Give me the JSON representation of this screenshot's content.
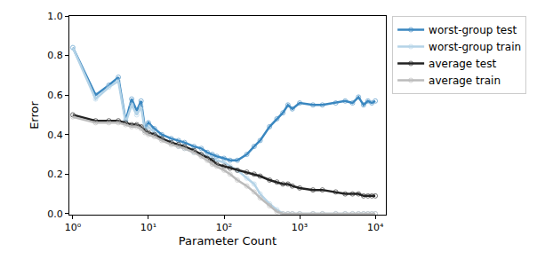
{
  "chart_data": {
    "type": "line",
    "x_label": "Parameter Count",
    "y_label": "Error",
    "log": "x",
    "grid": false,
    "legend": "outside right",
    "x": [
      1,
      2,
      3,
      4,
      5,
      6,
      7,
      8,
      9,
      10,
      12,
      15,
      20,
      25,
      30,
      40,
      50,
      60,
      70,
      80,
      100,
      120,
      150,
      200,
      250,
      300,
      400,
      500,
      600,
      700,
      800,
      1000,
      1500,
      2000,
      3000,
      4000,
      5000,
      6000,
      7000,
      8000,
      9000,
      10000
    ],
    "xlim": [
      0.9,
      13800
    ],
    "xticks": [
      {
        "value": 1,
        "label": "10⁰"
      },
      {
        "value": 10,
        "label": "10¹"
      },
      {
        "value": 100,
        "label": "10²"
      },
      {
        "value": 1000,
        "label": "10³"
      },
      {
        "value": 10000,
        "label": "10⁴"
      }
    ],
    "ylim": [
      -0.005,
      1.0
    ],
    "yticks": [
      {
        "value": 0,
        "label": "0.0"
      },
      0.2,
      0.4,
      0.6,
      0.8,
      {
        "value": 1,
        "label": "1.0"
      }
    ],
    "series": [
      {
        "name": "worst-group test",
        "color": "#3a87c0",
        "marker": "circle-open",
        "values": [
          0.84,
          0.6,
          0.65,
          0.69,
          0.47,
          0.58,
          0.52,
          0.57,
          0.43,
          0.46,
          0.43,
          0.4,
          0.38,
          0.37,
          0.36,
          0.34,
          0.33,
          0.31,
          0.3,
          0.29,
          0.28,
          0.27,
          0.27,
          0.3,
          0.34,
          0.37,
          0.44,
          0.48,
          0.51,
          0.55,
          0.53,
          0.56,
          0.55,
          0.55,
          0.56,
          0.57,
          0.56,
          0.59,
          0.55,
          0.57,
          0.56,
          0.57
        ]
      },
      {
        "name": "worst-group train",
        "color": "#b4d3e7",
        "marker": "circle-open",
        "values": [
          0.84,
          0.58,
          0.64,
          0.67,
          0.46,
          0.55,
          0.5,
          0.54,
          0.42,
          0.44,
          0.41,
          0.38,
          0.36,
          0.34,
          0.33,
          0.31,
          0.3,
          0.29,
          0.28,
          0.27,
          0.26,
          0.24,
          0.22,
          0.18,
          0.15,
          0.1,
          0.05,
          0.02,
          0.0,
          0.0,
          0.0,
          0.0,
          0.0,
          0.0,
          0.0,
          0.0,
          0.0,
          0.0,
          0.0,
          0.0,
          0.0,
          0.0
        ]
      },
      {
        "name": "average test",
        "color": "#222222",
        "marker": "circle-open",
        "values": [
          0.5,
          0.47,
          0.47,
          0.47,
          0.46,
          0.45,
          0.45,
          0.44,
          0.42,
          0.41,
          0.4,
          0.38,
          0.36,
          0.35,
          0.34,
          0.32,
          0.3,
          0.28,
          0.27,
          0.25,
          0.24,
          0.23,
          0.22,
          0.21,
          0.2,
          0.19,
          0.17,
          0.16,
          0.15,
          0.15,
          0.14,
          0.13,
          0.12,
          0.12,
          0.11,
          0.1,
          0.1,
          0.1,
          0.09,
          0.09,
          0.09,
          0.09
        ]
      },
      {
        "name": "average train",
        "color": "#bbbbbb",
        "marker": "circle-open",
        "values": [
          0.49,
          0.46,
          0.46,
          0.46,
          0.45,
          0.44,
          0.44,
          0.43,
          0.41,
          0.4,
          0.39,
          0.37,
          0.35,
          0.34,
          0.33,
          0.31,
          0.29,
          0.27,
          0.25,
          0.24,
          0.22,
          0.2,
          0.17,
          0.14,
          0.11,
          0.08,
          0.04,
          0.01,
          0.0,
          0.0,
          0.0,
          0.0,
          0.0,
          0.0,
          0.0,
          0.0,
          0.0,
          0.0,
          0.0,
          0.0,
          0.0,
          0.0
        ]
      }
    ]
  }
}
